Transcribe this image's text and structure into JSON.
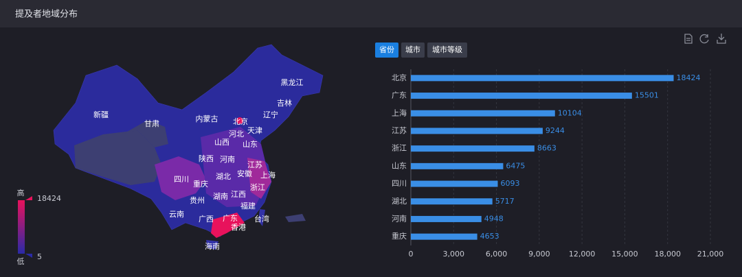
{
  "header": {
    "title": "提及者地域分布"
  },
  "tabs": [
    "省份",
    "城市",
    "城市等级"
  ],
  "map": {
    "provinces": [
      "新疆",
      "甘肃",
      "内蒙古",
      "黑龙江",
      "吉林",
      "辽宁",
      "北京",
      "天津",
      "河北",
      "山西",
      "山东",
      "陕西",
      "河南",
      "江苏",
      "四川",
      "重庆",
      "湖北",
      "安徽",
      "上海",
      "浙江",
      "贵州",
      "湖南",
      "江西",
      "福建",
      "云南",
      "广西",
      "广东",
      "香港",
      "台湾",
      "海南"
    ],
    "legend": {
      "high": "高",
      "low": "低",
      "max": 18424,
      "min": 5,
      "colors": [
        "#e8125c",
        "#2a2aa6"
      ]
    }
  },
  "chart_data": {
    "type": "bar",
    "orientation": "horizontal",
    "categories": [
      "北京",
      "广东",
      "上海",
      "江苏",
      "浙江",
      "山东",
      "四川",
      "湖北",
      "河南",
      "重庆"
    ],
    "values": [
      18424,
      15501,
      10104,
      9244,
      8663,
      6475,
      6093,
      5717,
      4948,
      4653
    ],
    "color": "#3a8ee6",
    "xlim": [
      0,
      21000
    ],
    "xticks": [
      0,
      {
        "value": 3000,
        "label": "3,000"
      },
      {
        "value": 6000,
        "label": "6,000"
      },
      {
        "value": 9000,
        "label": "9,000"
      },
      {
        "value": 12000,
        "label": "12,000"
      },
      {
        "value": 15000,
        "label": "15,000"
      },
      {
        "value": 18000,
        "label": "18,000"
      },
      {
        "value": 21000,
        "label": "21,000"
      }
    ],
    "grid": true
  }
}
